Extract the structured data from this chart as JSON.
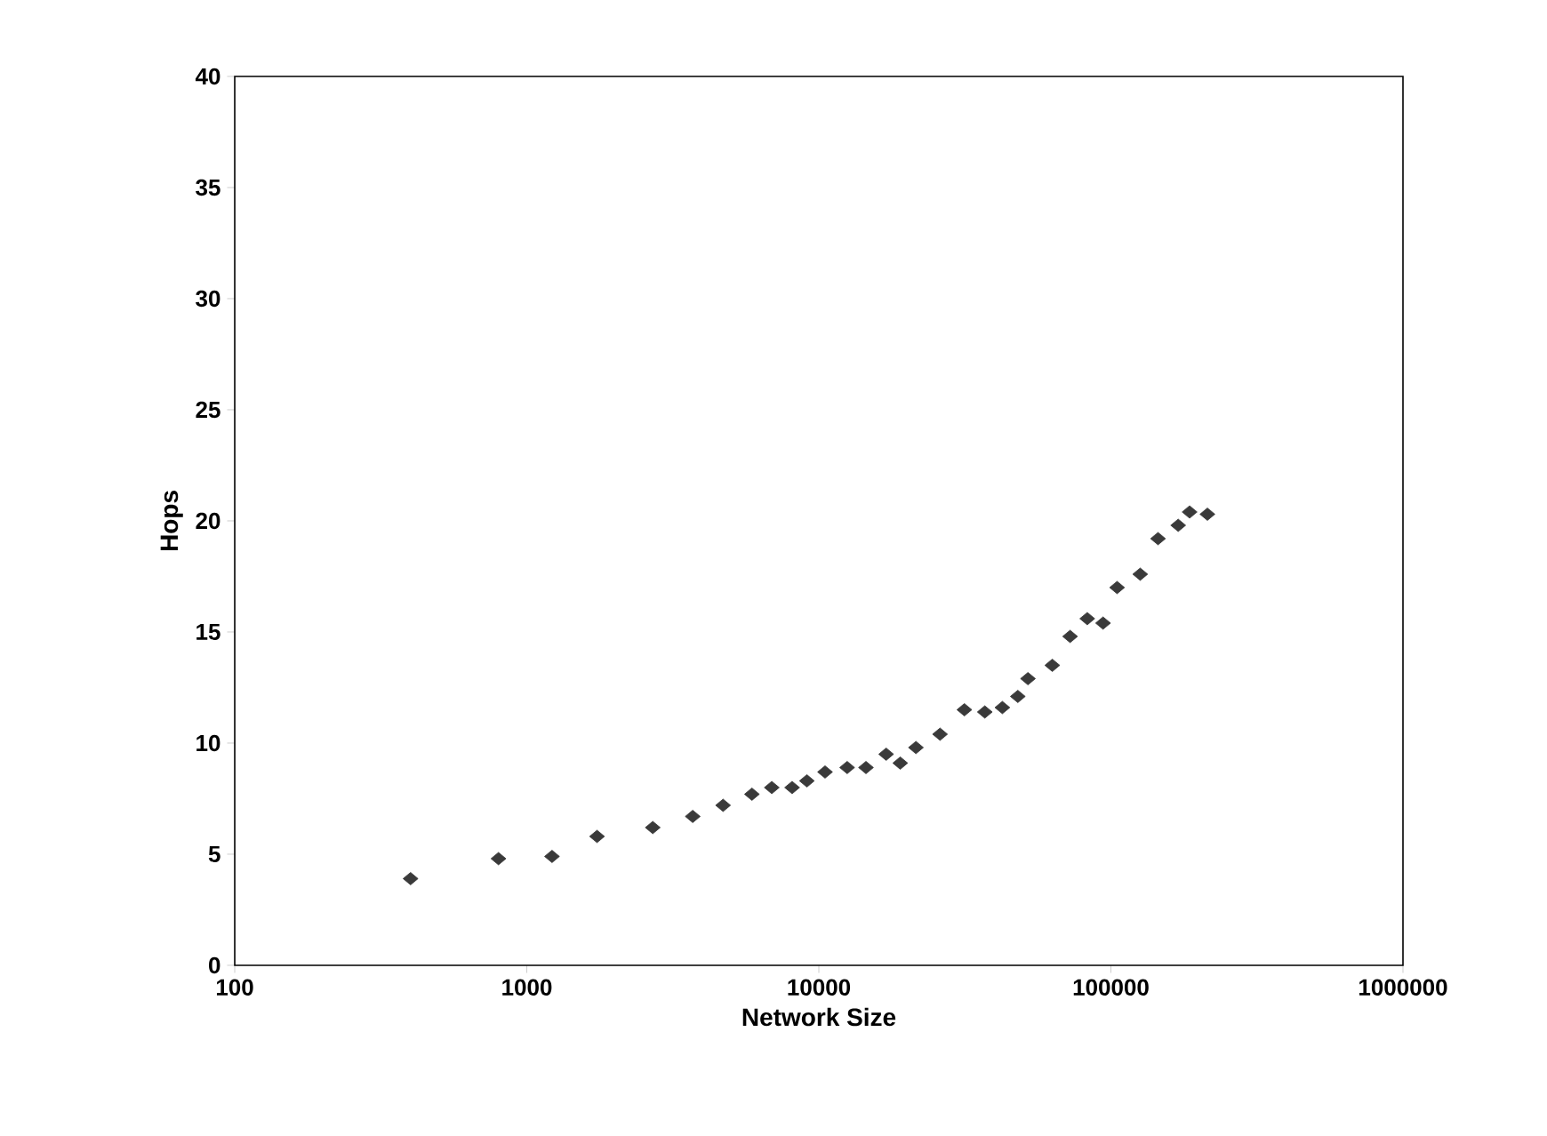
{
  "chart_data": {
    "type": "scatter",
    "xlabel": "Network Size",
    "ylabel": "Hops",
    "log": "x",
    "marker": "diamond",
    "grid": false,
    "xlim": [
      100,
      1000000
    ],
    "xticks": [
      100,
      1000,
      10000,
      100000,
      1000000
    ],
    "ylim": [
      0,
      40
    ],
    "yticks": [
      0,
      5,
      10,
      15,
      20,
      25,
      30,
      35,
      40
    ],
    "x": [
      400,
      800,
      1220,
      1740,
      2700,
      3700,
      4700,
      5900,
      6900,
      8100,
      9100,
      10500,
      12500,
      14500,
      17000,
      19000,
      21500,
      26000,
      31500,
      37000,
      42500,
      48000,
      52000,
      63000,
      72500,
      83000,
      94000,
      105000,
      126000,
      145000,
      170000,
      186000,
      214000
    ],
    "values": [
      3.9,
      4.8,
      4.9,
      5.8,
      6.2,
      6.7,
      7.2,
      7.7,
      8.0,
      8.0,
      8.3,
      8.7,
      8.9,
      8.9,
      9.5,
      9.1,
      9.8,
      10.4,
      11.5,
      11.4,
      11.6,
      12.1,
      12.9,
      13.5,
      14.8,
      15.6,
      15.4,
      17.0,
      17.6,
      19.2,
      19.8,
      20.4,
      20.3
    ],
    "color": "#3a3a3a"
  }
}
